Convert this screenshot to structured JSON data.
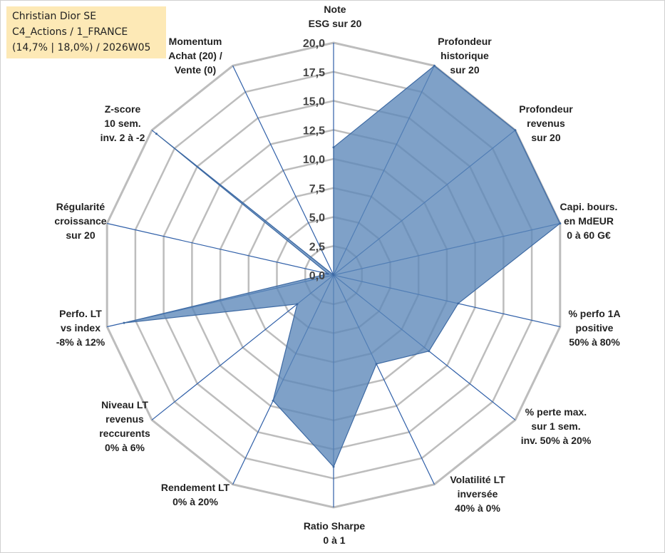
{
  "info_box": {
    "line1": "Christian Dior SE",
    "line2": "C4_Actions / 1_FRANCE",
    "line3": "(14,7% | 18,0%) / 2026W05"
  },
  "colors": {
    "fill": "#5b86b8",
    "fill_opacity": "0.78",
    "outline": "#3e6aa3",
    "spoke": "#2f5fa8",
    "grid": "#bdbdbd",
    "info_bg": "#fde9b6"
  },
  "chart_data": {
    "type": "radar",
    "range": [
      0,
      20
    ],
    "grid_step": 2.5,
    "tick_labels": [
      "0,0",
      "2,5",
      "5,0",
      "7,5",
      "10,0",
      "12,5",
      "15,0",
      "17,5",
      "20,0"
    ],
    "categories": [
      "Note\nESG sur 20",
      "Profondeur\nhistorique\nsur 20",
      "Profondeur\nrevenus\nsur 20",
      "Capi. bours.\nen MdEUR\n0 à 60 G€",
      "% perfo 1A\npositive\n50% à 80%",
      "% perte max.\nsur 1 sem.\ninv. 50% à 20%",
      "Volatilité LT\ninversée\n40% à 0%",
      "Ratio Sharpe\n0 à 1",
      "Rendement LT\n0% à 20%",
      "Niveau LT\nrevenus\nreccurents\n0% à 6%",
      "Perfo. LT\nvs index\n-8% à 12%",
      "Régularité\ncroissance\nsur 20",
      "Z-score\n10 sem.\ninv. 2 à -2",
      "Momentum\nAchat (20) /\nVente (0)"
    ],
    "series": [
      {
        "name": "Christian Dior SE",
        "values": [
          11.0,
          20.0,
          20.0,
          20.0,
          11.0,
          10.5,
          8.5,
          16.5,
          12.0,
          4.0,
          18.5,
          0.5,
          19.5,
          0.0
        ]
      }
    ]
  }
}
